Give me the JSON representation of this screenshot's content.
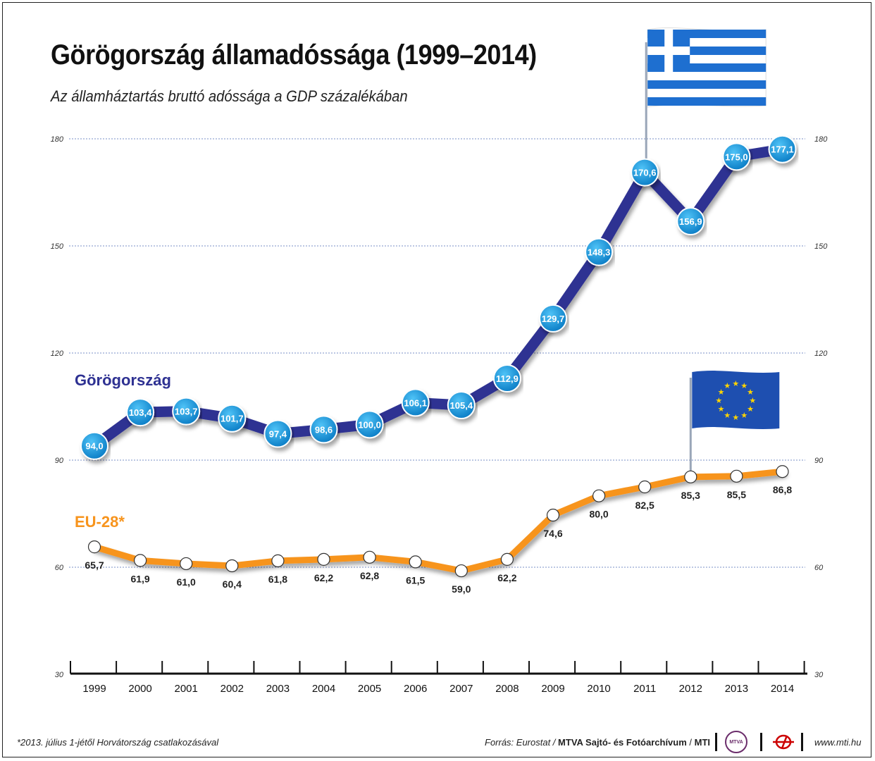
{
  "title": "Görögország államadóssága (1999–2014)",
  "subtitle": "Az államháztartás bruttó adóssága a GDP százalékában",
  "colors": {
    "greece": "#2e3192",
    "greece_marker": "#1b9ee0",
    "eu": "#f7941d",
    "grid": "#7a8fc7"
  },
  "chart_data": {
    "type": "line",
    "x": [
      "1999",
      "2000",
      "2001",
      "2002",
      "2003",
      "2004",
      "2005",
      "2006",
      "2007",
      "2008",
      "2009",
      "2010",
      "2011",
      "2012",
      "2013",
      "2014"
    ],
    "ylim": [
      30,
      180
    ],
    "yticks": [
      30,
      60,
      90,
      120,
      150,
      180
    ],
    "grid": true,
    "series": [
      {
        "name": "Görögország",
        "values": [
          94.0,
          103.4,
          103.7,
          101.7,
          97.4,
          98.6,
          100.0,
          106.1,
          105.4,
          112.9,
          129.7,
          148.3,
          170.6,
          156.9,
          175.0,
          177.1
        ],
        "labels": [
          "94,0",
          "103,4",
          "103,7",
          "101,7",
          "97,4",
          "98,6",
          "100,0",
          "106,1",
          "105,4",
          "112,9",
          "129,7",
          "148,3",
          "170,6",
          "156,9",
          "175,0",
          "177,1"
        ]
      },
      {
        "name": "EU-28*",
        "values": [
          65.7,
          61.9,
          61.0,
          60.4,
          61.8,
          62.2,
          62.8,
          61.5,
          59.0,
          62.2,
          74.6,
          80.0,
          82.5,
          85.3,
          85.5,
          86.8
        ],
        "labels": [
          "65,7",
          "61,9",
          "61,0",
          "60,4",
          "61,8",
          "62,2",
          "62,8",
          "61,5",
          "59,0",
          "62,2",
          "74,6",
          "80,0",
          "82,5",
          "85,3",
          "85,5",
          "86,8"
        ]
      }
    ]
  },
  "flags": [
    "greek-flag-icon",
    "eu-flag-icon"
  ],
  "footer": {
    "note": "*2013. július 1-jétől Horvátország csatlakozásával",
    "source_prefix": "Forrás: Eurostat / ",
    "source_org": "MTVA Sajtó- és Fotóarchívum",
    "source_sep": " / ",
    "source_mti": "MTI",
    "mtva_logo_text": "MTVA",
    "url": "www.mti.hu"
  }
}
